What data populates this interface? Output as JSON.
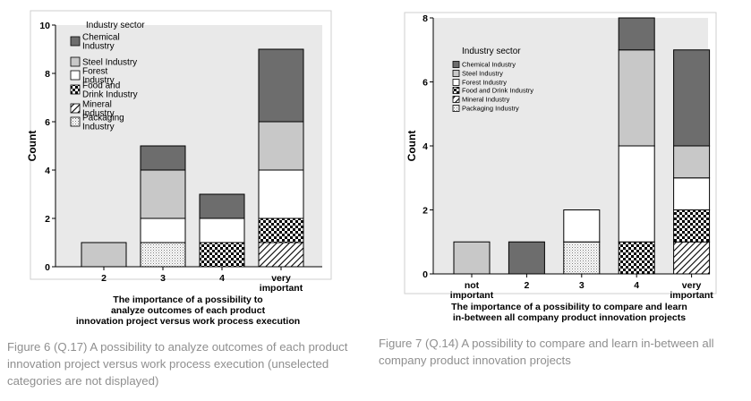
{
  "colors": {
    "Chemical Industry": "#6d6d6d",
    "Steel Industry": "#c8c8c8",
    "Forest Industry": "#ffffff",
    "Packaging Industry": "#dddddd",
    "plot_background": "#e9e9e9"
  },
  "chart_data": [
    {
      "type": "bar",
      "stacked": true,
      "categories": [
        "2",
        "3",
        "4",
        "very important"
      ],
      "xlabel": "The importance of a possibility to analyze outcomes of each product innovation project versus work process execution",
      "ylabel": "Count",
      "ylim": [
        0,
        10
      ],
      "yticks": [
        0,
        2,
        4,
        6,
        8,
        10
      ],
      "legend_title": "Industry sector",
      "legend_position": "top-left",
      "series": [
        {
          "name": "Mineral Industry",
          "pattern": "diagonal-hatch",
          "values": [
            0,
            0,
            0,
            1
          ]
        },
        {
          "name": "Food and Drink Industry",
          "pattern": "checkered",
          "values": [
            0,
            0,
            1,
            1
          ]
        },
        {
          "name": "Packaging Industry",
          "pattern": "dotted",
          "values": [
            0,
            1,
            0,
            0
          ]
        },
        {
          "name": "Forest Industry",
          "pattern": "white",
          "values": [
            0,
            1,
            1,
            2
          ]
        },
        {
          "name": "Steel Industry",
          "pattern": "light-gray",
          "values": [
            1,
            2,
            0,
            2
          ]
        },
        {
          "name": "Chemical Industry",
          "pattern": "dark-gray",
          "values": [
            0,
            1,
            1,
            3
          ]
        }
      ],
      "legend_order": [
        "Chemical Industry",
        "Steel Industry",
        "Forest Industry",
        "Food and Drink Industry",
        "Mineral Industry",
        "Packaging Industry"
      ],
      "caption": "Figure 6 (Q.17) A possibility to analyze outcomes of each product innovation project versus work process execution (unselected categories are not displayed)"
    },
    {
      "type": "bar",
      "stacked": true,
      "categories": [
        "not important",
        "2",
        "3",
        "4",
        "very important"
      ],
      "xlabel": "The importance of a possibility to compare and learn in-between all company product innovation projects",
      "ylabel": "Count",
      "ylim": [
        0,
        8
      ],
      "yticks": [
        0,
        2,
        4,
        6,
        8
      ],
      "legend_title": "Industry sector",
      "legend_position": "top-left",
      "series": [
        {
          "name": "Mineral Industry",
          "pattern": "diagonal-hatch",
          "values": [
            0,
            0,
            0,
            0,
            1
          ]
        },
        {
          "name": "Food and Drink Industry",
          "pattern": "checkered",
          "values": [
            0,
            0,
            0,
            1,
            1
          ]
        },
        {
          "name": "Packaging Industry",
          "pattern": "dotted",
          "values": [
            0,
            0,
            1,
            0,
            0
          ]
        },
        {
          "name": "Forest Industry",
          "pattern": "white",
          "values": [
            0,
            0,
            1,
            3,
            1
          ]
        },
        {
          "name": "Steel Industry",
          "pattern": "light-gray",
          "values": [
            1,
            0,
            0,
            3,
            1
          ]
        },
        {
          "name": "Chemical Industry",
          "pattern": "dark-gray",
          "values": [
            0,
            1,
            0,
            1,
            3
          ]
        }
      ],
      "legend_order": [
        "Chemical Industry",
        "Steel Industry",
        "Forest Industry",
        "Food and Drink Industry",
        "Mineral Industry",
        "Packaging Industry"
      ],
      "caption": "Figure 7 (Q.14) A possibility to compare and learn in-between all company product innovation projects"
    }
  ]
}
